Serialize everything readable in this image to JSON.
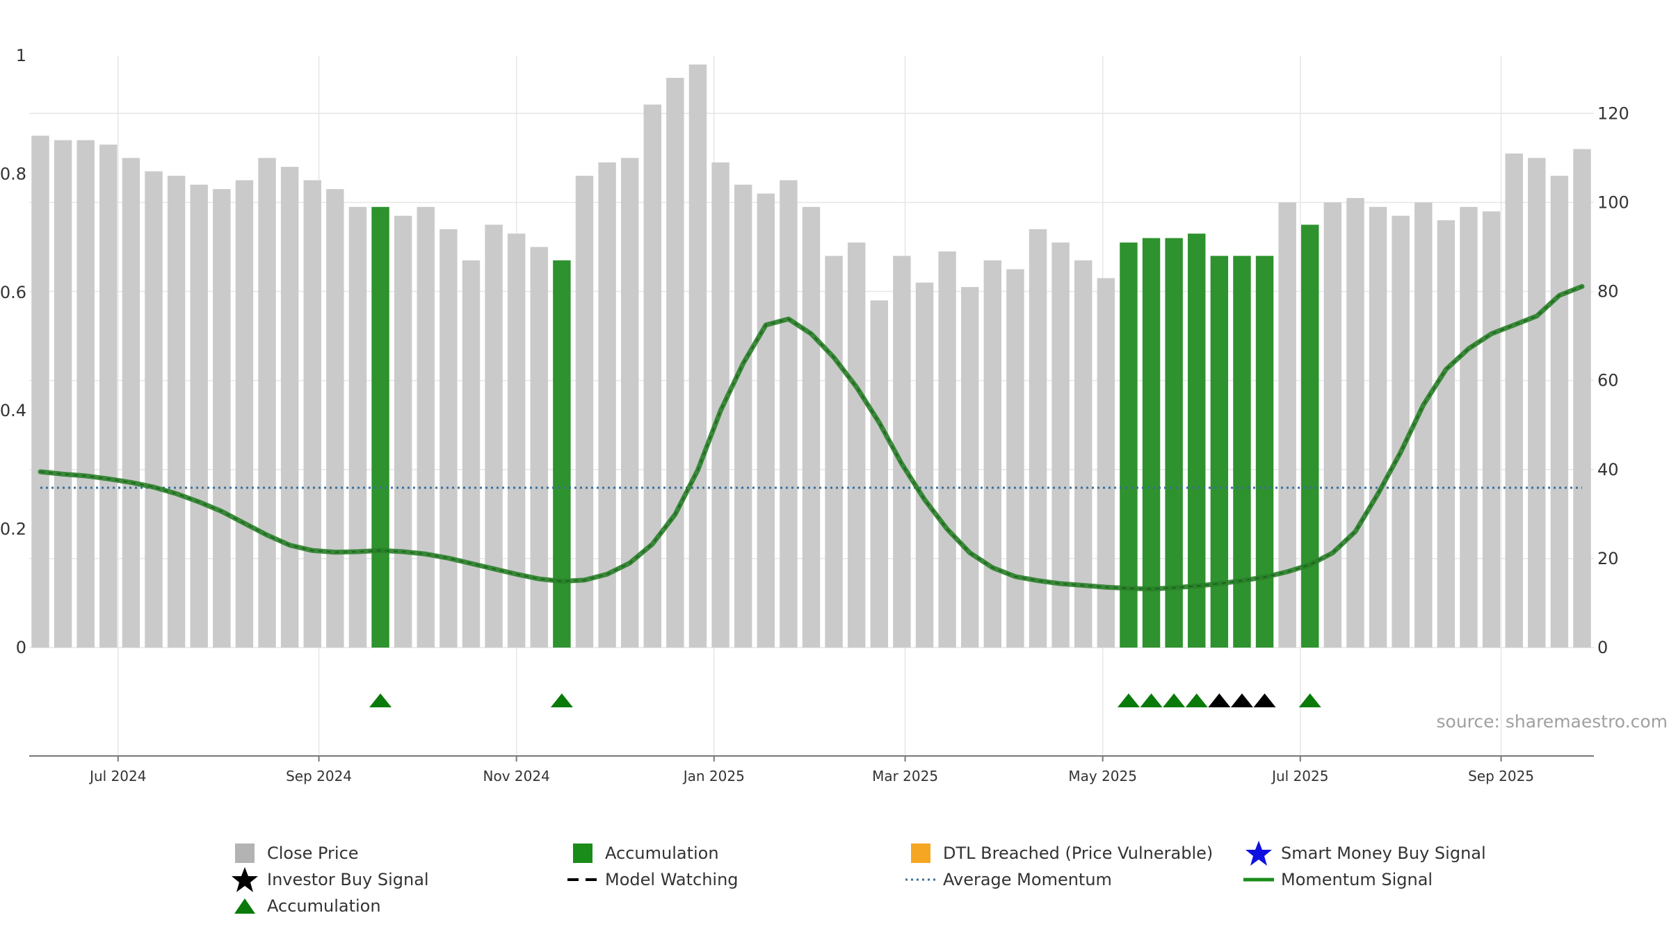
{
  "chart_data": {
    "type": "bar",
    "x_tick_labels": [
      "Jul 2024",
      "Sep 2024",
      "Nov 2024",
      "Jan 2025",
      "Mar 2025",
      "May 2025",
      "Jul 2025",
      "Sep 2025"
    ],
    "x_tick_dates": [
      "2024-07-01",
      "2024-09-01",
      "2024-11-01",
      "2025-01-01",
      "2025-03-01",
      "2025-05-01",
      "2025-07-01",
      "2025-09-01"
    ],
    "left_axis": {
      "ticks": [
        "0",
        "0.2",
        "0.4",
        "0.6",
        "0.8",
        "1"
      ],
      "ylim": [
        0,
        1
      ]
    },
    "right_axis": {
      "ticks": [
        "0",
        "20",
        "40",
        "60",
        "80",
        "100",
        "120"
      ],
      "ylim": [
        0,
        133
      ]
    },
    "weeks": [
      "2024-06-07",
      "2024-06-14",
      "2024-06-21",
      "2024-06-28",
      "2024-07-05",
      "2024-07-12",
      "2024-07-19",
      "2024-07-26",
      "2024-08-02",
      "2024-08-09",
      "2024-08-16",
      "2024-08-23",
      "2024-08-30",
      "2024-09-06",
      "2024-09-13",
      "2024-09-20",
      "2024-09-27",
      "2024-10-04",
      "2024-10-11",
      "2024-10-18",
      "2024-10-25",
      "2024-11-01",
      "2024-11-08",
      "2024-11-15",
      "2024-11-22",
      "2024-11-29",
      "2024-12-06",
      "2024-12-13",
      "2024-12-20",
      "2024-12-27",
      "2025-01-03",
      "2025-01-10",
      "2025-01-17",
      "2025-01-24",
      "2025-01-31",
      "2025-02-07",
      "2025-02-14",
      "2025-02-21",
      "2025-02-28",
      "2025-03-07",
      "2025-03-14",
      "2025-03-21",
      "2025-03-28",
      "2025-04-04",
      "2025-04-11",
      "2025-04-18",
      "2025-04-25",
      "2025-05-02",
      "2025-05-09",
      "2025-05-16",
      "2025-05-23",
      "2025-05-30",
      "2025-06-06",
      "2025-06-13",
      "2025-06-20",
      "2025-06-27",
      "2025-07-04",
      "2025-07-11",
      "2025-07-18",
      "2025-07-25",
      "2025-08-01",
      "2025-08-08",
      "2025-08-15",
      "2025-08-22",
      "2025-08-29",
      "2025-09-05",
      "2025-09-12",
      "2025-09-19",
      "2025-09-26"
    ],
    "series": [
      {
        "name": "Close Price",
        "axis": "right",
        "values": [
          115,
          114,
          114,
          113,
          110,
          107,
          106,
          104,
          103,
          105,
          110,
          108,
          105,
          103,
          99,
          99,
          97,
          99,
          94,
          87,
          95,
          93,
          90,
          87,
          106,
          109,
          110,
          122,
          128,
          131,
          109,
          104,
          102,
          105,
          99,
          88,
          91,
          78,
          88,
          82,
          89,
          81,
          87,
          85,
          94,
          91,
          87,
          83,
          91,
          92,
          92,
          93,
          88,
          88,
          88,
          100,
          95,
          100,
          101,
          99,
          97,
          100,
          96,
          99,
          98,
          111,
          110,
          106,
          112
        ]
      },
      {
        "name": "Momentum Signal",
        "axis": "left",
        "values": [
          0.297,
          0.293,
          0.29,
          0.285,
          0.279,
          0.271,
          0.26,
          0.246,
          0.23,
          0.21,
          0.19,
          0.173,
          0.164,
          0.161,
          0.162,
          0.164,
          0.162,
          0.158,
          0.151,
          0.142,
          0.133,
          0.124,
          0.116,
          0.112,
          0.114,
          0.124,
          0.143,
          0.175,
          0.225,
          0.3,
          0.4,
          0.48,
          0.545,
          0.555,
          0.53,
          0.49,
          0.44,
          0.38,
          0.31,
          0.25,
          0.2,
          0.16,
          0.135,
          0.12,
          0.113,
          0.108,
          0.105,
          0.102,
          0.1,
          0.099,
          0.101,
          0.104,
          0.108,
          0.113,
          0.119,
          0.128,
          0.14,
          0.16,
          0.196,
          0.26,
          0.33,
          0.41,
          0.47,
          0.505,
          0.53,
          0.545,
          0.56,
          0.595,
          0.61
        ]
      },
      {
        "name": "Average Momentum",
        "axis": "left",
        "values": [
          0.27
        ]
      }
    ],
    "accumulation_weeks": [
      15,
      23,
      48,
      49,
      50,
      51,
      52,
      53,
      54,
      56
    ],
    "accumulation_markers": [
      15,
      23,
      48,
      49,
      50,
      51,
      56
    ],
    "investor_buy_markers": [
      52,
      53,
      54
    ],
    "legend": [
      {
        "label": "Close Price",
        "symbol": "square",
        "color": "#b3b3b3"
      },
      {
        "label": "Accumulation",
        "symbol": "square",
        "color": "#1a8c1a"
      },
      {
        "label": "DTL Breached (Price Vulnerable)",
        "symbol": "square",
        "color": "#f5a623"
      },
      {
        "label": "Smart Money Buy Signal",
        "symbol": "star",
        "color": "#1010e0"
      },
      {
        "label": "Investor Buy Signal",
        "symbol": "star",
        "color": "#000000"
      },
      {
        "label": "Model Watching",
        "symbol": "dash",
        "color": "#000000"
      },
      {
        "label": "Average Momentum",
        "symbol": "dotted",
        "color": "#3a6f9a"
      },
      {
        "label": "Momentum Signal",
        "symbol": "line",
        "color": "#1a8c1a"
      },
      {
        "label": "Accumulation",
        "symbol": "triangle",
        "color": "#0a7a0a"
      }
    ],
    "grid": true,
    "legend_position": "bottom"
  },
  "source": "source: sharemaestro.com",
  "colors": {
    "bar_gray": "#cacaca",
    "bar_green": "#2e922e",
    "momentum_line": "#2a7f2a",
    "avg_line": "#3a6f9a",
    "grid": "#e6e6e6",
    "axis_text": "#333333"
  }
}
